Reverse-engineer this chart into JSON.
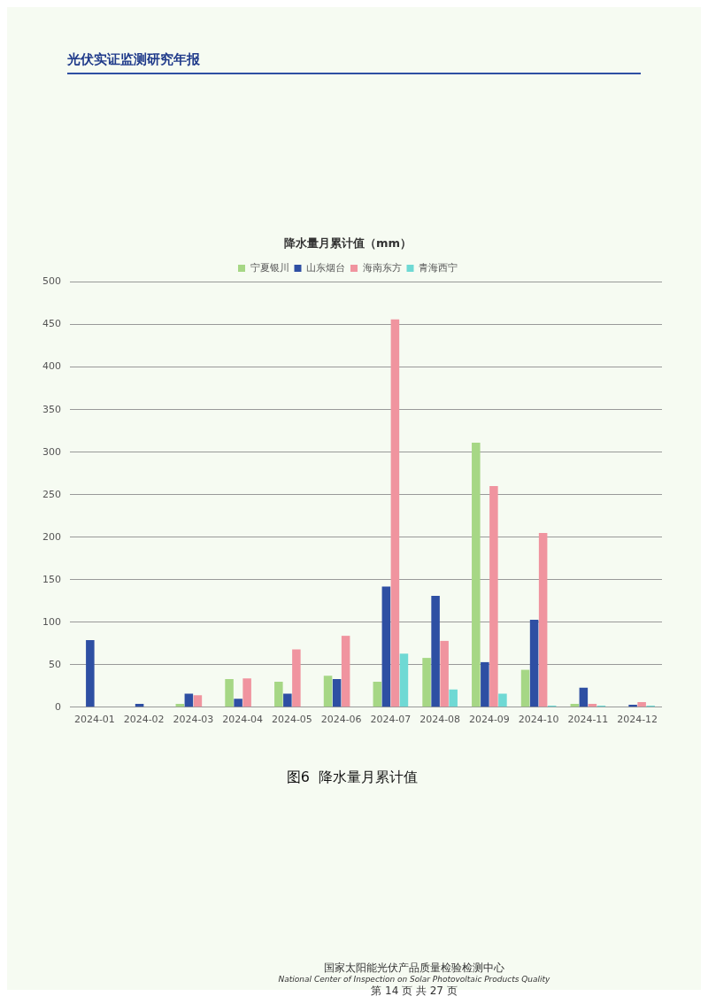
{
  "chart_data": {
    "type": "bar",
    "title": "降水量月累计值（mm）",
    "categories": [
      "2024-01",
      "2024-02",
      "2024-03",
      "2024-04",
      "2024-05",
      "2024-06",
      "2024-07",
      "2024-08",
      "2024-09",
      "2024-10",
      "2024-11",
      "2024-12"
    ],
    "series": [
      {
        "name": "宁夏银川",
        "color": "#a6d785",
        "values": [
          0,
          0,
          4,
          33,
          30,
          37,
          30,
          58,
          311,
          44,
          4,
          0
        ]
      },
      {
        "name": "山东烟台",
        "color": "#2e4fa3",
        "values": [
          79,
          4,
          16,
          10,
          16,
          33,
          142,
          131,
          53,
          103,
          23,
          3
        ]
      },
      {
        "name": "海南东方",
        "color": "#f0949f",
        "values": [
          0,
          0,
          14,
          34,
          68,
          84,
          456,
          78,
          260,
          205,
          4,
          6
        ]
      },
      {
        "name": "青海西宁",
        "color": "#6fd9d4",
        "values": [
          0,
          0,
          0,
          0,
          0,
          0,
          63,
          21,
          16,
          2,
          2,
          2
        ]
      }
    ],
    "ylim": [
      0,
      500
    ],
    "yticks": [
      0,
      50,
      100,
      150,
      200,
      250,
      300,
      350,
      400,
      450,
      500
    ],
    "grid": "y",
    "legend": "top",
    "annotations": [
      "光伏实证监测研究年报",
      "图6  降水量月累计值",
      "国家太阳能光伏产品质量检验检测中心",
      "National Center of Inspection on Solar Photovoltaic Products Quality",
      "第 14 页 共 27 页"
    ]
  }
}
